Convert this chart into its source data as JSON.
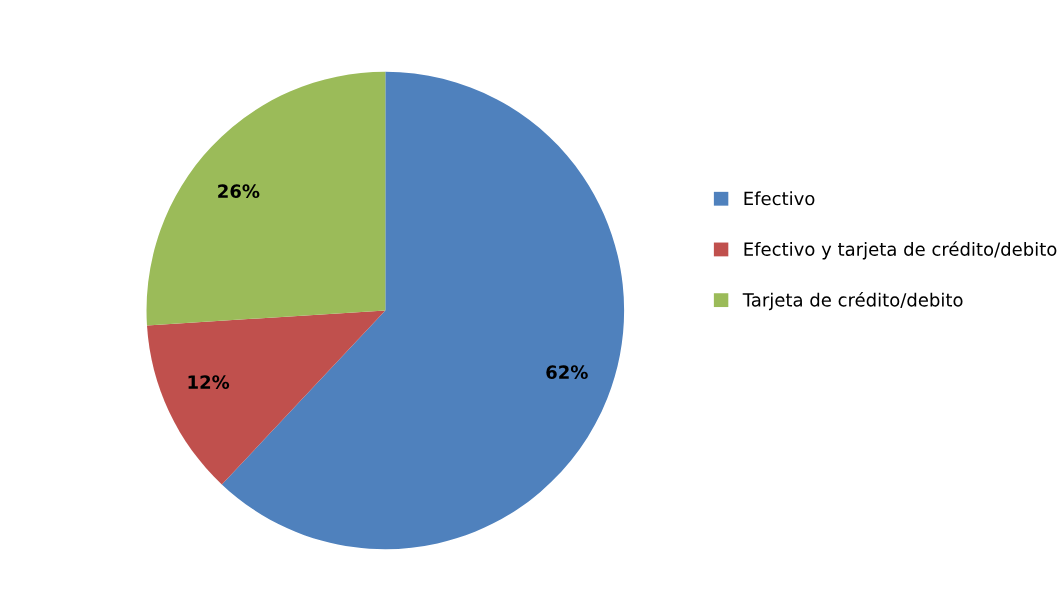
{
  "chart_data": {
    "type": "pie",
    "categories": [
      "Efectivo",
      "Efectivo y tarjeta de crédito/debito",
      "Tarjeta de crédito/debito"
    ],
    "values": [
      62,
      12,
      26
    ],
    "colors": [
      "#4f81bd",
      "#c0504d",
      "#9bbb59"
    ],
    "value_labels": [
      "62%",
      "12%",
      "26%"
    ],
    "data_labels": true,
    "legend": "right"
  }
}
